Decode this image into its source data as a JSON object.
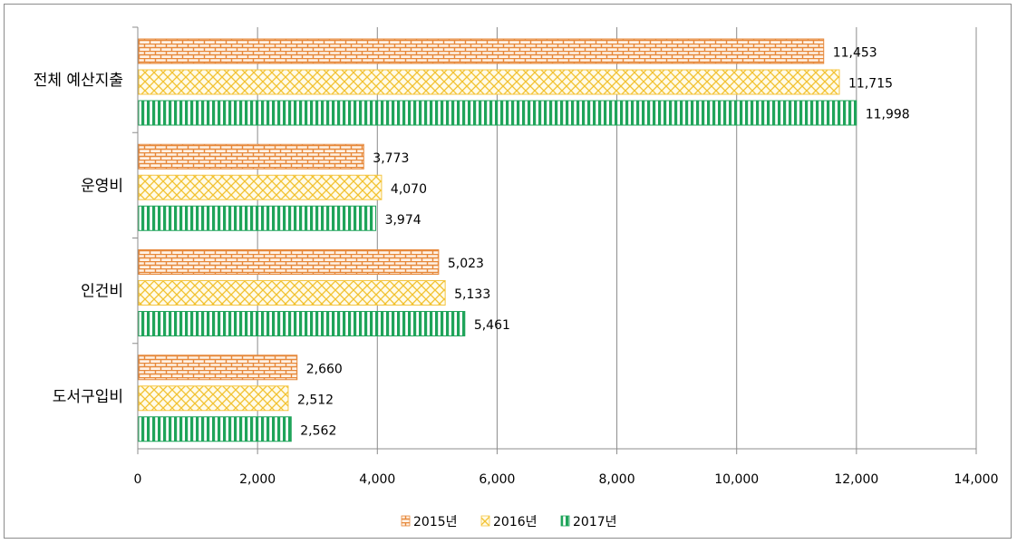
{
  "chart_data": {
    "type": "bar",
    "orientation": "horizontal",
    "categories": [
      "전체 예산지출",
      "운영비",
      "인건비",
      "도서구입비"
    ],
    "series": [
      {
        "name": "2015년",
        "values": [
          11453,
          3773,
          5023,
          2660
        ],
        "labels": [
          "11,453",
          "3,773",
          "5,023",
          "2,660"
        ],
        "color": "#e6883a",
        "pattern": "brick"
      },
      {
        "name": "2016년",
        "values": [
          11715,
          4070,
          5133,
          2512
        ],
        "labels": [
          "11,715",
          "4,070",
          "5,133",
          "2,512"
        ],
        "color": "#f5c542",
        "pattern": "wave"
      },
      {
        "name": "2017년",
        "values": [
          11998,
          3974,
          5461,
          2562
        ],
        "labels": [
          "11,998",
          "3,974",
          "5,461",
          "2,562"
        ],
        "color": "#1fa45a",
        "pattern": "vertical-stripes"
      }
    ],
    "xlim": [
      0,
      14000
    ],
    "xticks": [
      "0",
      "2,000",
      "4,000",
      "6,000",
      "8,000",
      "10,000",
      "12,000",
      "14,000"
    ],
    "grid": true,
    "legend_position": "bottom",
    "title": "",
    "xlabel": "",
    "ylabel": ""
  }
}
